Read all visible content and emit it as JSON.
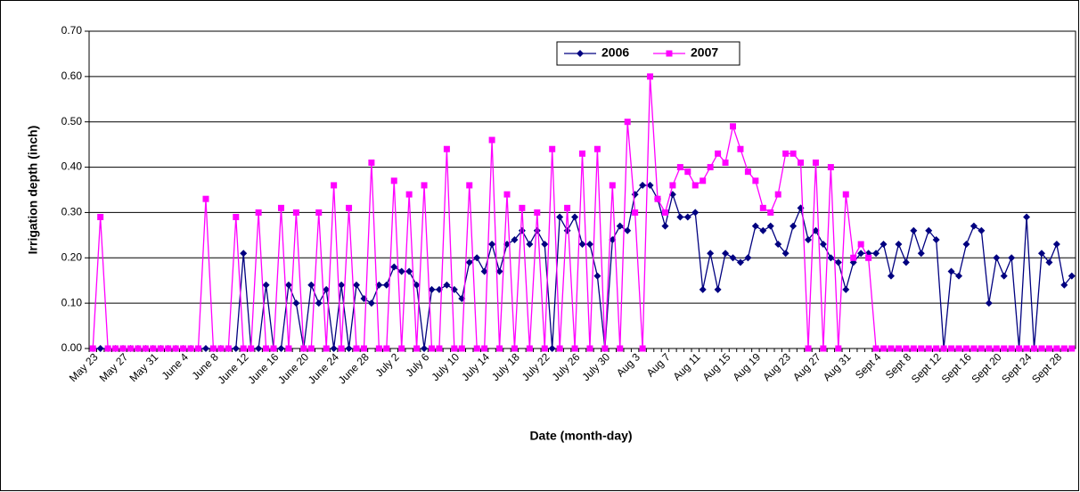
{
  "chart_data": {
    "type": "line",
    "x_label": "Date (month-day)",
    "y_label": "Irrigation depth (inch)",
    "categories": [
      "May 23",
      null,
      null,
      null,
      "May 27",
      null,
      null,
      null,
      "May 31",
      null,
      null,
      null,
      "June 4",
      null,
      null,
      null,
      "June 8",
      null,
      null,
      null,
      "June 12",
      null,
      null,
      null,
      "June 16",
      null,
      null,
      null,
      "June 20",
      null,
      null,
      null,
      "June 24",
      null,
      null,
      null,
      "June 28",
      null,
      null,
      null,
      "July 2",
      null,
      null,
      null,
      "July 6",
      null,
      null,
      null,
      "July 10",
      null,
      null,
      null,
      "July 14",
      null,
      null,
      null,
      "July 18",
      null,
      null,
      null,
      "July 22",
      null,
      null,
      null,
      "July 26",
      null,
      null,
      null,
      "July 30",
      null,
      null,
      null,
      "Aug 3",
      null,
      null,
      null,
      "Aug 7",
      null,
      null,
      null,
      "Aug 11",
      null,
      null,
      null,
      "Aug 15",
      null,
      null,
      null,
      "Aug 19",
      null,
      null,
      null,
      "Aug 23",
      null,
      null,
      null,
      "Aug 27",
      null,
      null,
      null,
      "Aug 31",
      null,
      null,
      null,
      "Sept 4",
      null,
      null,
      null,
      "Sept 8",
      null,
      null,
      null,
      "Sept 12",
      null,
      null,
      null,
      "Sept 16",
      null,
      null,
      null,
      "Sept 20",
      null,
      null,
      null,
      "Sept 24",
      null,
      null,
      null,
      "Sept 28",
      null,
      null
    ],
    "series": [
      {
        "name": "2006",
        "color": "#000080",
        "marker": "diamond",
        "values": [
          0,
          0,
          0,
          0,
          0,
          0,
          0,
          0,
          0,
          0,
          0,
          0,
          0,
          0,
          0,
          0,
          0,
          0,
          0,
          0,
          0.21,
          0,
          0,
          0.14,
          0,
          0,
          0.14,
          0.1,
          0,
          0.14,
          0.1,
          0.13,
          0,
          0.14,
          0,
          0.14,
          0.11,
          0.1,
          0.14,
          0.14,
          0.18,
          0.17,
          0.17,
          0.14,
          0,
          0.13,
          0.13,
          0.14,
          0.13,
          0.11,
          0.19,
          0.2,
          0.17,
          0.23,
          0.17,
          0.23,
          0.24,
          0.26,
          0.23,
          0.26,
          0.23,
          0,
          0.29,
          0.26,
          0.29,
          0.23,
          0.23,
          0.16,
          0,
          0.24,
          0.27,
          0.26,
          0.34,
          0.36,
          0.36,
          0.33,
          0.27,
          0.34,
          0.29,
          0.29,
          0.3,
          0.13,
          0.21,
          0.13,
          0.21,
          0.2,
          0.19,
          0.2,
          0.27,
          0.26,
          0.27,
          0.23,
          0.21,
          0.27,
          0.31,
          0.24,
          0.26,
          0.23,
          0.2,
          0.19,
          0.13,
          0.19,
          0.21,
          0.21,
          0.21,
          0.23,
          0.16,
          0.23,
          0.19,
          0.26,
          0.21,
          0.26,
          0.24,
          0,
          0.17,
          0.16,
          0.23,
          0.27,
          0.26,
          0.1,
          0.2,
          0.16,
          0.2,
          0,
          0.29,
          0,
          0.21,
          0.19,
          0.23,
          0.14,
          0.16
        ]
      },
      {
        "name": "2007",
        "color": "#ff00ff",
        "marker": "square",
        "values": [
          0,
          0.29,
          0,
          0,
          0,
          0,
          0,
          0,
          0,
          0,
          0,
          0,
          0,
          0,
          0,
          0.33,
          0,
          0,
          0,
          0.29,
          0,
          0,
          0.3,
          0,
          0,
          0.31,
          0,
          0.3,
          0,
          0,
          0.3,
          0,
          0.36,
          0,
          0.31,
          0,
          0,
          0.41,
          0,
          0,
          0.37,
          0,
          0.34,
          0,
          0.36,
          0,
          0,
          0.44,
          0,
          0,
          0.36,
          0,
          0,
          0.46,
          0,
          0.34,
          0,
          0.31,
          0,
          0.3,
          0,
          0.44,
          0,
          0.31,
          0,
          0.43,
          0,
          0.44,
          0,
          0.36,
          0,
          0.5,
          0.3,
          0,
          0.6,
          0.33,
          0.3,
          0.36,
          0.4,
          0.39,
          0.36,
          0.37,
          0.4,
          0.43,
          0.41,
          0.49,
          0.44,
          0.39,
          0.37,
          0.31,
          0.3,
          0.34,
          0.43,
          0.43,
          0.41,
          0,
          0.41,
          0,
          0.4,
          0,
          0.34,
          0.2,
          0.23,
          0.2,
          0,
          0,
          0,
          0,
          0,
          0,
          0,
          0,
          0,
          0,
          0,
          0,
          0,
          0,
          0,
          0,
          0,
          0,
          0,
          0,
          0,
          0,
          0,
          0,
          0,
          0,
          0
        ]
      }
    ],
    "ylim": [
      0,
      0.7
    ],
    "yticks": [
      {
        "value": 0,
        "label": "0.00"
      },
      {
        "value": 0.1,
        "label": "0.10"
      },
      {
        "value": 0.2,
        "label": "0.20"
      },
      {
        "value": 0.3,
        "label": "0.30"
      },
      {
        "value": 0.4,
        "label": "0.40"
      },
      {
        "value": 0.5,
        "label": "0.50"
      },
      {
        "value": 0.6,
        "label": "0.60"
      },
      {
        "value": 0.7,
        "label": "0.70"
      }
    ],
    "grid": true,
    "legend": "top"
  }
}
